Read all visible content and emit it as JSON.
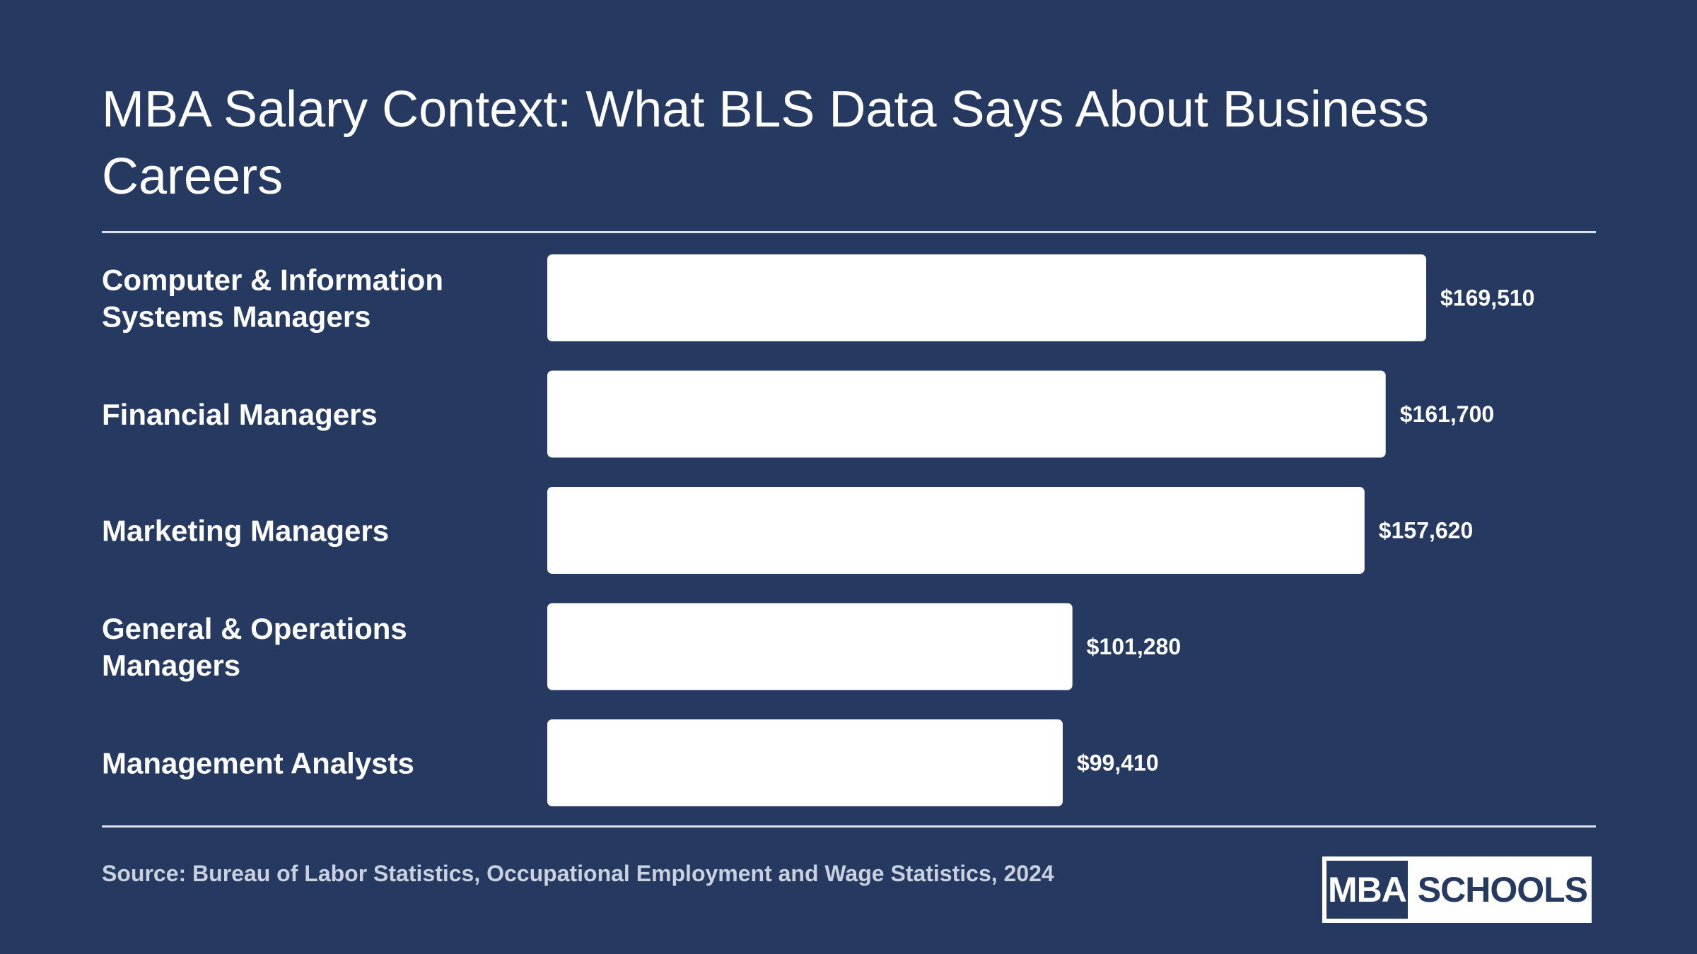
{
  "title": "MBA Salary Context: What BLS Data Says About Business Careers",
  "source": "Source: Bureau of Labor Statistics, Occupational Employment and Wage Statistics, 2024",
  "logo": {
    "left_text": "MBA",
    "right_text": "SCHOOLS"
  },
  "colors": {
    "background": "#253961",
    "bar": "#ffffff",
    "text": "#ffffff"
  },
  "chart_data": {
    "type": "bar",
    "orientation": "horizontal",
    "categories": [
      [
        "Computer & Information",
        "Systems Managers"
      ],
      [
        "Financial Managers"
      ],
      [
        "Marketing Managers"
      ],
      [
        "General & Operations",
        "Managers"
      ],
      [
        "Management Analysts"
      ]
    ],
    "values": [
      169510,
      161700,
      157620,
      101280,
      99410
    ],
    "value_labels": [
      "$169,510",
      "$161,700",
      "$157,620",
      "$101,280",
      "$99,410"
    ],
    "xlim": [
      0,
      169510
    ],
    "grid": false,
    "legend": "none"
  }
}
